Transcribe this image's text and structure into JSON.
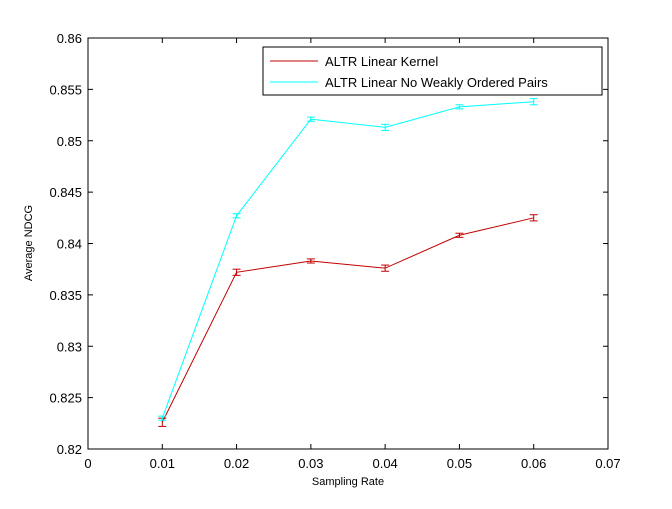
{
  "chart_data": {
    "type": "line",
    "xlabel": "Sampling Rate",
    "ylabel": "Average NDCG",
    "xlim": [
      0,
      0.07
    ],
    "ylim": [
      0.82,
      0.86
    ],
    "x_ticks": [
      "0",
      "0.01",
      "0.02",
      "0.03",
      "0.04",
      "0.05",
      "0.06",
      "0.07"
    ],
    "y_ticks": [
      "0.82",
      "0.825",
      "0.83",
      "0.835",
      "0.84",
      "0.845",
      "0.85",
      "0.855",
      "0.86"
    ],
    "grid": false,
    "legend_position": "top-right",
    "error_bars": true,
    "series": [
      {
        "name": "ALTR Linear Kernel",
        "color": "#c00000",
        "x": [
          0.01,
          0.02,
          0.03,
          0.04,
          0.05,
          0.06
        ],
        "y": [
          0.8226,
          0.8372,
          0.8383,
          0.8376,
          0.8408,
          0.8425
        ],
        "err": [
          0.0004,
          0.0003,
          0.0002,
          0.0003,
          0.0002,
          0.0003
        ]
      },
      {
        "name": "ALTR Linear No Weakly Ordered Pairs",
        "color": "#00ffff",
        "x": [
          0.01,
          0.02,
          0.03,
          0.04,
          0.05,
          0.06
        ],
        "y": [
          0.823,
          0.8427,
          0.8521,
          0.8513,
          0.8533,
          0.8538
        ],
        "err": [
          0.0002,
          0.0002,
          0.0002,
          0.0003,
          0.0002,
          0.0003
        ]
      }
    ]
  }
}
